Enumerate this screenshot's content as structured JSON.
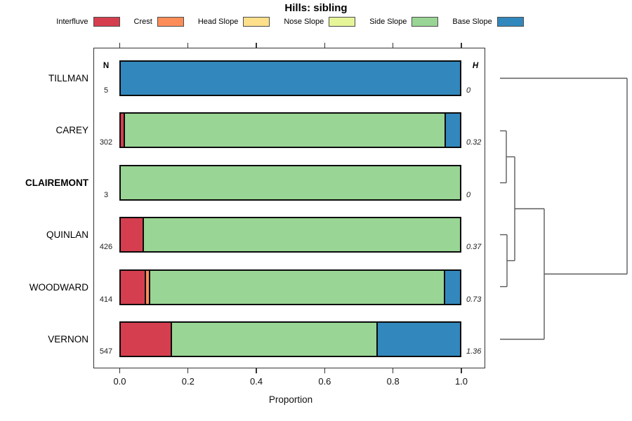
{
  "chart_data": {
    "type": "bar",
    "orientation": "horizontal-stacked",
    "title": "Hills: sibling",
    "xlabel": "Proportion",
    "xlim": [
      0,
      1.08
    ],
    "x_ticks": [
      "0.0",
      "0.2",
      "0.4",
      "0.6",
      "0.8",
      "1.0"
    ],
    "x_tick_values": [
      0,
      0.2,
      0.4,
      0.6,
      0.8,
      1.0
    ],
    "grid": false,
    "legend_position": "top",
    "categories": [
      "TILLMAN",
      "CAREY",
      "CLAIREMONT",
      "QUINLAN",
      "WOODWARD",
      "VERNON"
    ],
    "bold_category": "CLAIREMONT",
    "series": [
      {
        "name": "Interfluve",
        "color": "#D53E4F",
        "values": [
          0,
          0.012,
          0,
          0.068,
          0.075,
          0.152
        ]
      },
      {
        "name": "Crest",
        "color": "#FC8D59",
        "values": [
          0,
          0,
          0,
          0,
          0.013,
          0
        ]
      },
      {
        "name": "Head Slope",
        "color": "#FEE08B",
        "values": [
          0,
          0,
          0,
          0,
          0,
          0
        ]
      },
      {
        "name": "Nose Slope",
        "color": "#E6F598",
        "values": [
          0,
          0,
          0,
          0,
          0,
          0
        ]
      },
      {
        "name": "Side Slope",
        "color": "#99D594",
        "values": [
          0,
          0.946,
          1,
          0.932,
          0.869,
          0.605
        ]
      },
      {
        "name": "Base Slope",
        "color": "#3288BD",
        "values": [
          1,
          0.042,
          0,
          0,
          0.043,
          0.243
        ]
      }
    ],
    "n_label": "N",
    "h_label": "H",
    "n_values": [
      "5",
      "302",
      "3",
      "426",
      "414",
      "547"
    ],
    "h_values": [
      "0",
      "0.32",
      "0",
      "0.37",
      "0.73",
      "1.36"
    ],
    "dendrogram_segments": [
      [
        712,
        111.5,
        893,
        111.5
      ],
      [
        893,
        111.5,
        893,
        390.5
      ],
      [
        775,
        390.5,
        893,
        390.5
      ],
      [
        775,
        297.5,
        775,
        483.5
      ],
      [
        712,
        483.5,
        775,
        483.5
      ],
      [
        733,
        297.5,
        775,
        297.5
      ],
      [
        733,
        223.5,
        733,
        371.5
      ],
      [
        721,
        223.5,
        733,
        223.5
      ],
      [
        721,
        186.5,
        721,
        260.5
      ],
      [
        712,
        186.5,
        721,
        186.5
      ],
      [
        712,
        260.5,
        721,
        260.5
      ],
      [
        722,
        371.5,
        733,
        371.5
      ],
      [
        722,
        334.5,
        722,
        408.5
      ],
      [
        712,
        334.5,
        722,
        334.5
      ],
      [
        712,
        408.5,
        722,
        408.5
      ]
    ],
    "dendrogram_color": "#5a5a5a"
  }
}
